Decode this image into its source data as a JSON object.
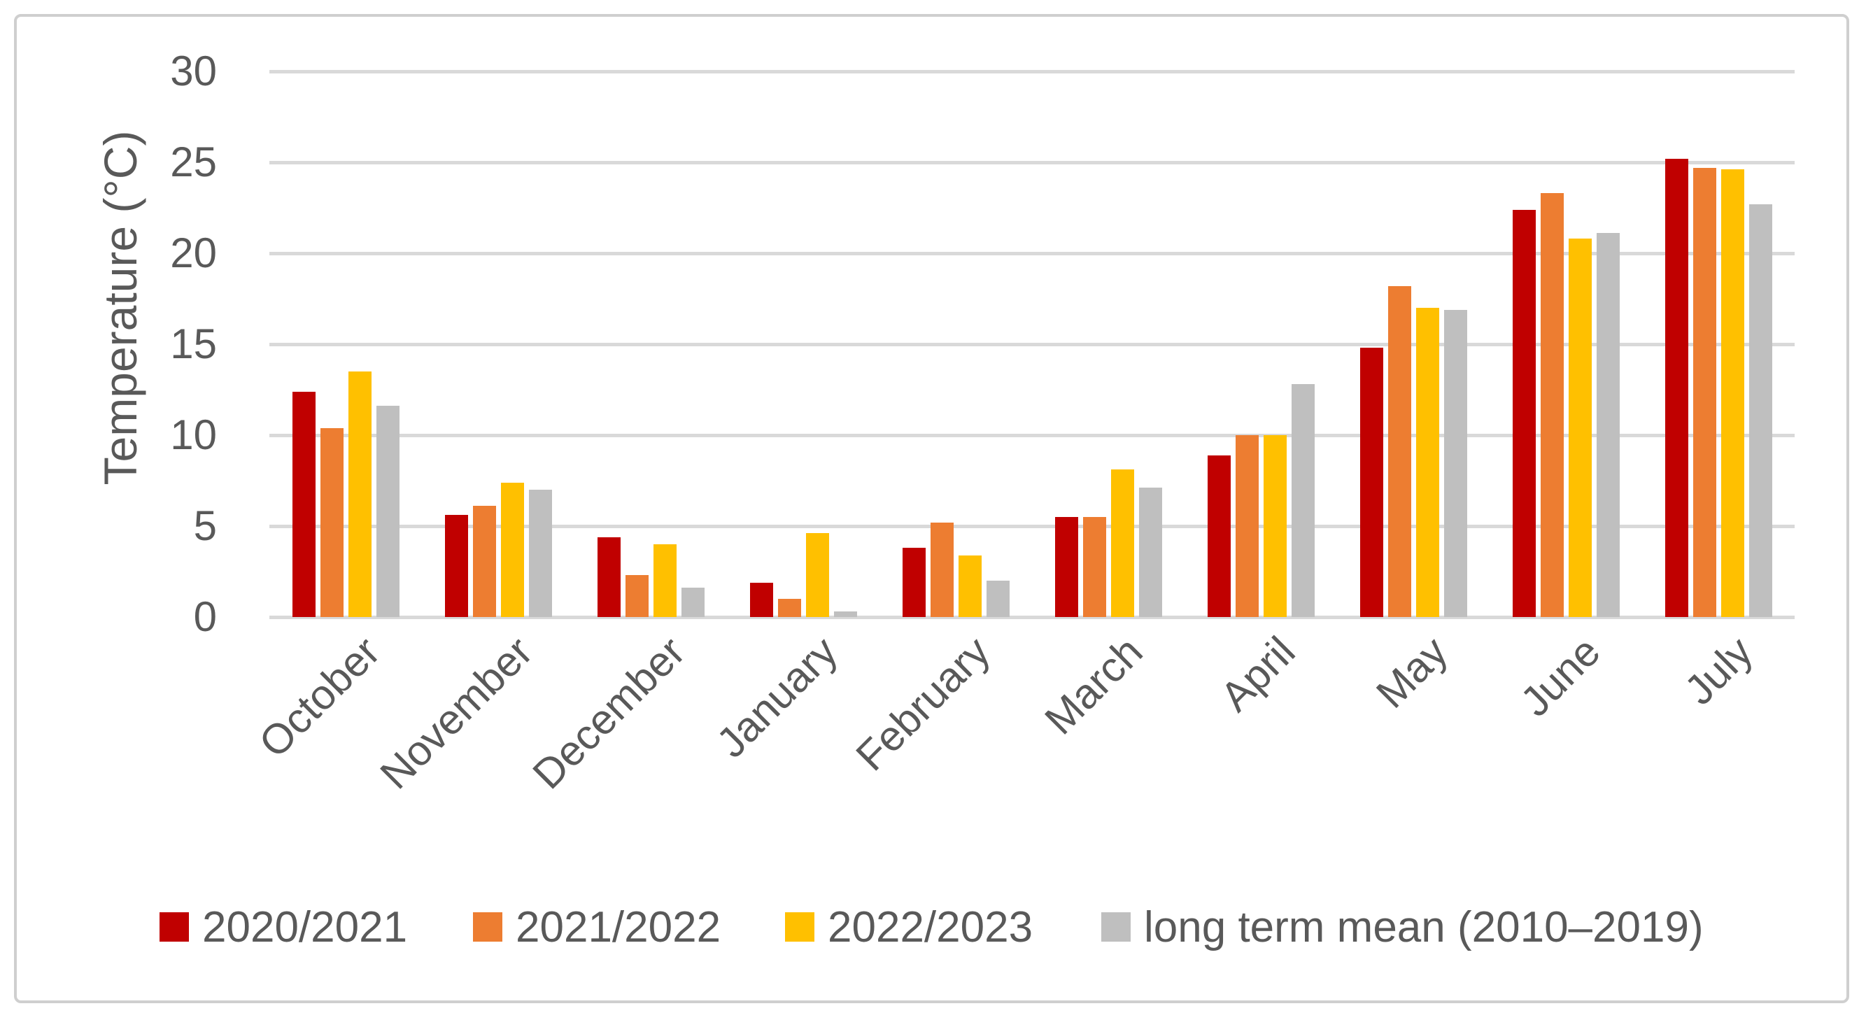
{
  "figure": {
    "background": "#ffffff",
    "border_color": "#cfcfcf"
  },
  "chart_data": {
    "type": "bar",
    "title": "",
    "xlabel": "",
    "ylabel": "Temperature (°C)",
    "categories": [
      "October",
      "November",
      "December",
      "January",
      "February",
      "March",
      "April",
      "May",
      "June",
      "July"
    ],
    "series": [
      {
        "name": "2020/2021",
        "color": "#C00000",
        "values": [
          12.4,
          5.6,
          4.4,
          1.9,
          3.8,
          5.5,
          8.9,
          14.8,
          22.4,
          25.2
        ]
      },
      {
        "name": "2021/2022",
        "color": "#ED7D31",
        "values": [
          10.4,
          6.1,
          2.3,
          1.0,
          5.2,
          5.5,
          10.0,
          18.2,
          23.3,
          24.7
        ]
      },
      {
        "name": "2022/2023",
        "color": "#FFC000",
        "values": [
          13.5,
          7.4,
          4.0,
          4.6,
          3.4,
          8.1,
          10.0,
          17.0,
          20.8,
          24.6
        ]
      },
      {
        "name": "long term mean (2010–2019)",
        "color": "#BFBFBF",
        "values": [
          11.6,
          7.0,
          1.6,
          0.3,
          2.0,
          7.1,
          12.8,
          16.9,
          21.1,
          22.7
        ]
      }
    ],
    "ylim": [
      0,
      30
    ],
    "yticks": [
      0,
      5,
      10,
      15,
      20,
      25,
      30
    ],
    "grid": true,
    "gridline_color": "#D9D9D9",
    "text_color": "#595959",
    "legend_position": "bottom"
  }
}
